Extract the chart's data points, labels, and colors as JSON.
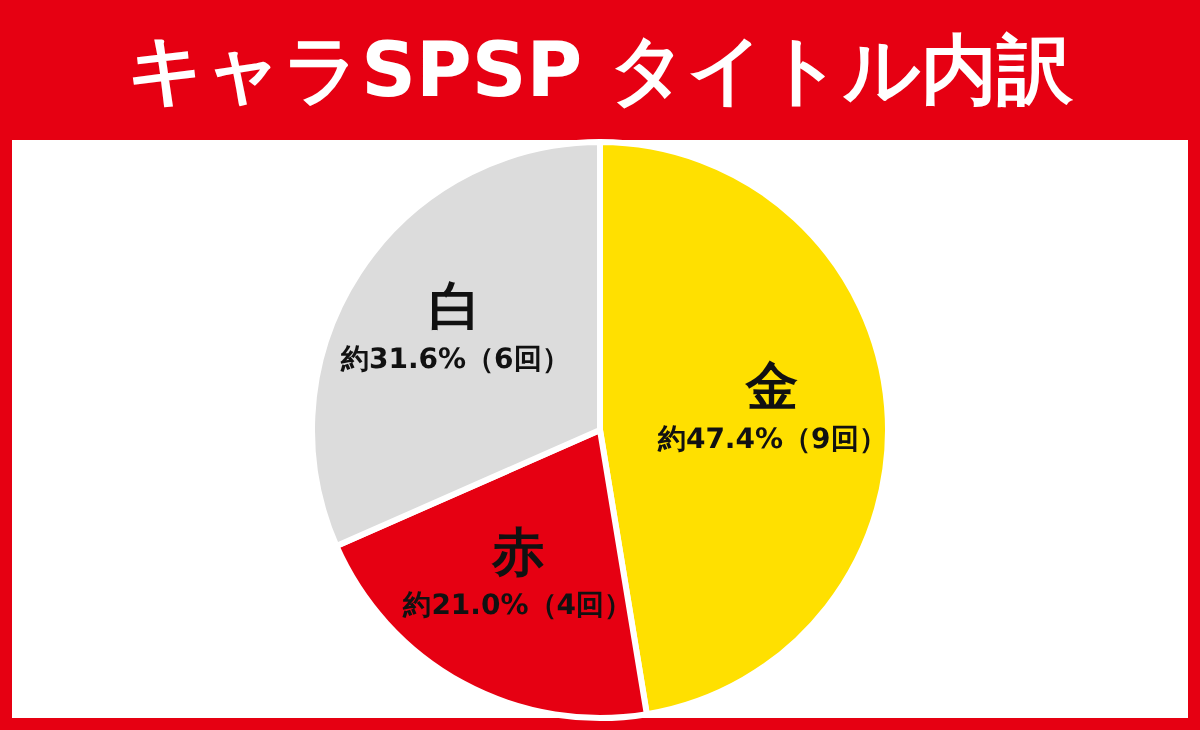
{
  "chart_data": {
    "type": "pie",
    "title": "キャラSPSP タイトル内訳",
    "categories": [
      "金",
      "赤",
      "白"
    ],
    "values": [
      47.4,
      21.0,
      31.6
    ],
    "colors": [
      "#ffe000",
      "#e60012",
      "#dcdcdc"
    ],
    "value_labels": [
      "約47.4%（9回）",
      "約21.0%（4回）",
      "約31.6%（6回）"
    ],
    "legend": false
  }
}
